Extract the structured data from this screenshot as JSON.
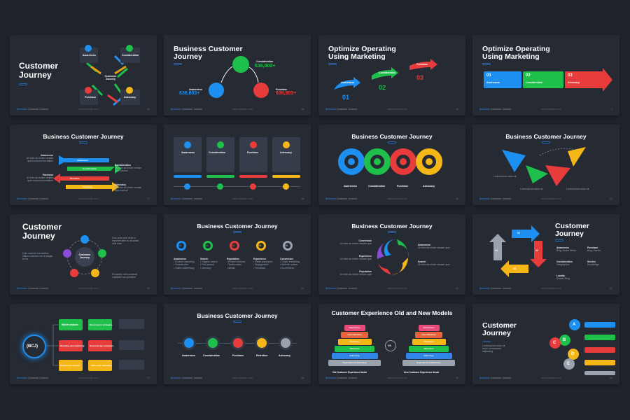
{
  "footer": {
    "brand_a": "Business",
    "brand_b": "Customer Journey",
    "site": "www.website.com"
  },
  "colors": {
    "blue": "#1d8ff0",
    "green": "#1fbf4c",
    "red": "#e83b3b",
    "yellow": "#f5b617",
    "bg": "#1f232b",
    "slide": "#252a33"
  },
  "slides": [
    {
      "title_l1": "Customer",
      "title_l2": "Journey",
      "page": "15",
      "labels": [
        "Awareness",
        "Consideration",
        "Customer Journey",
        "Purchase",
        "Advocacy"
      ]
    },
    {
      "title_l1": "Business Customer",
      "title_l2": "Journey",
      "page": "16",
      "awareness": "Awareness",
      "awareness_val": "636,803+",
      "consideration": "Consideration",
      "consideration_val": "636,803+",
      "purchase": "Purchase",
      "purchase_val": "636,803+"
    },
    {
      "title_l1": "Optimize Operating",
      "title_l2": "Using Marketing",
      "page": "12",
      "nums": [
        "01",
        "02",
        "03"
      ],
      "labels": [
        "Awareness",
        "Consideration",
        "Purchase"
      ]
    },
    {
      "title_l1": "Optimize Operating",
      "title_l2": "Using Marketing",
      "page": "7",
      "nums": [
        "01",
        "02",
        "03"
      ],
      "labels": [
        "Awareness",
        "Consideration",
        "Advocacy"
      ]
    },
    {
      "title": "Business Customer Journey",
      "page": "17",
      "labels": [
        "Awareness",
        "Consideration",
        "Purchase",
        "Advocacy"
      ]
    },
    {
      "page": "18",
      "labels": [
        "Awareness",
        "Consideration",
        "Purchase",
        "Advocacy"
      ]
    },
    {
      "title": "Business Customer Journey",
      "page": "20",
      "labels": [
        "Awareness",
        "Consideration",
        "Purchase",
        "Advocacy"
      ]
    },
    {
      "title": "Business Customer Journey",
      "page": "21",
      "labels": [
        "Lorem ipsum dolor sit",
        "Lorem ipsum dolor sit",
        "Lorem ipsum dolor sit"
      ]
    },
    {
      "title_l1": "Customer",
      "title_l2": "Journey",
      "page": "25",
      "center": "Customer Journey"
    },
    {
      "title": "Business Customer Journey",
      "page": "24",
      "nums": [
        "01",
        "02",
        "03",
        "04",
        "05"
      ],
      "labels": [
        "Awareness",
        "Search",
        "Reputation",
        "Experience",
        "Conversion"
      ]
    },
    {
      "title": "Business Customer Journey",
      "page": "23",
      "labels": [
        "Conversion",
        "Experience",
        "Reputation",
        "Awareness",
        "Search"
      ]
    },
    {
      "title_l1": "Customer",
      "title_l2": "Journey",
      "page": "22",
      "nums": [
        "01",
        "02",
        "03",
        "04"
      ],
      "labels": [
        "Awareness",
        "Purchase",
        "Consideration",
        "Service",
        "Loyalty"
      ]
    },
    {
      "page": "27",
      "center": "(BCJ)",
      "labels": [
        "Market analysis",
        "Branding and marketing",
        "Experience creation",
        "Brand-name strategies",
        "Brand-design strategies",
        "Sales and marketing"
      ]
    },
    {
      "title": "Business Customer Journey",
      "page": "28",
      "labels": [
        "Awareness",
        "Consideration",
        "Purchase",
        "Retention",
        "Advocacy"
      ]
    },
    {
      "title": "Customer Experience Old and New Models",
      "page": "29",
      "vs": "VS",
      "left_caption": "Old Customer Experience Model",
      "right_caption": "New Customer Experience Model",
      "left_steps": [
        "Awareness",
        "Consideration",
        "Purchase",
        "Retention",
        "Advocacy",
        "Experience & Advocacy"
      ],
      "right_steps": [
        "Awareness",
        "Consideration",
        "Purchase",
        "Retention",
        "Advocacy",
        "Experience & Advocacy"
      ]
    },
    {
      "title_l1": "Customer",
      "title_l2": "Journey",
      "page": "30",
      "subtitle": "Journey",
      "letters": [
        "A",
        "B",
        "C",
        "D",
        "E"
      ]
    }
  ]
}
